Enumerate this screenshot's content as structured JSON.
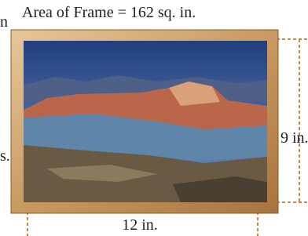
{
  "header": {
    "title": "Area of Frame = 162 sq. in."
  },
  "labels": {
    "height": "9 in.",
    "width": "12 in."
  },
  "fragments": [
    "n",
    "s."
  ]
}
